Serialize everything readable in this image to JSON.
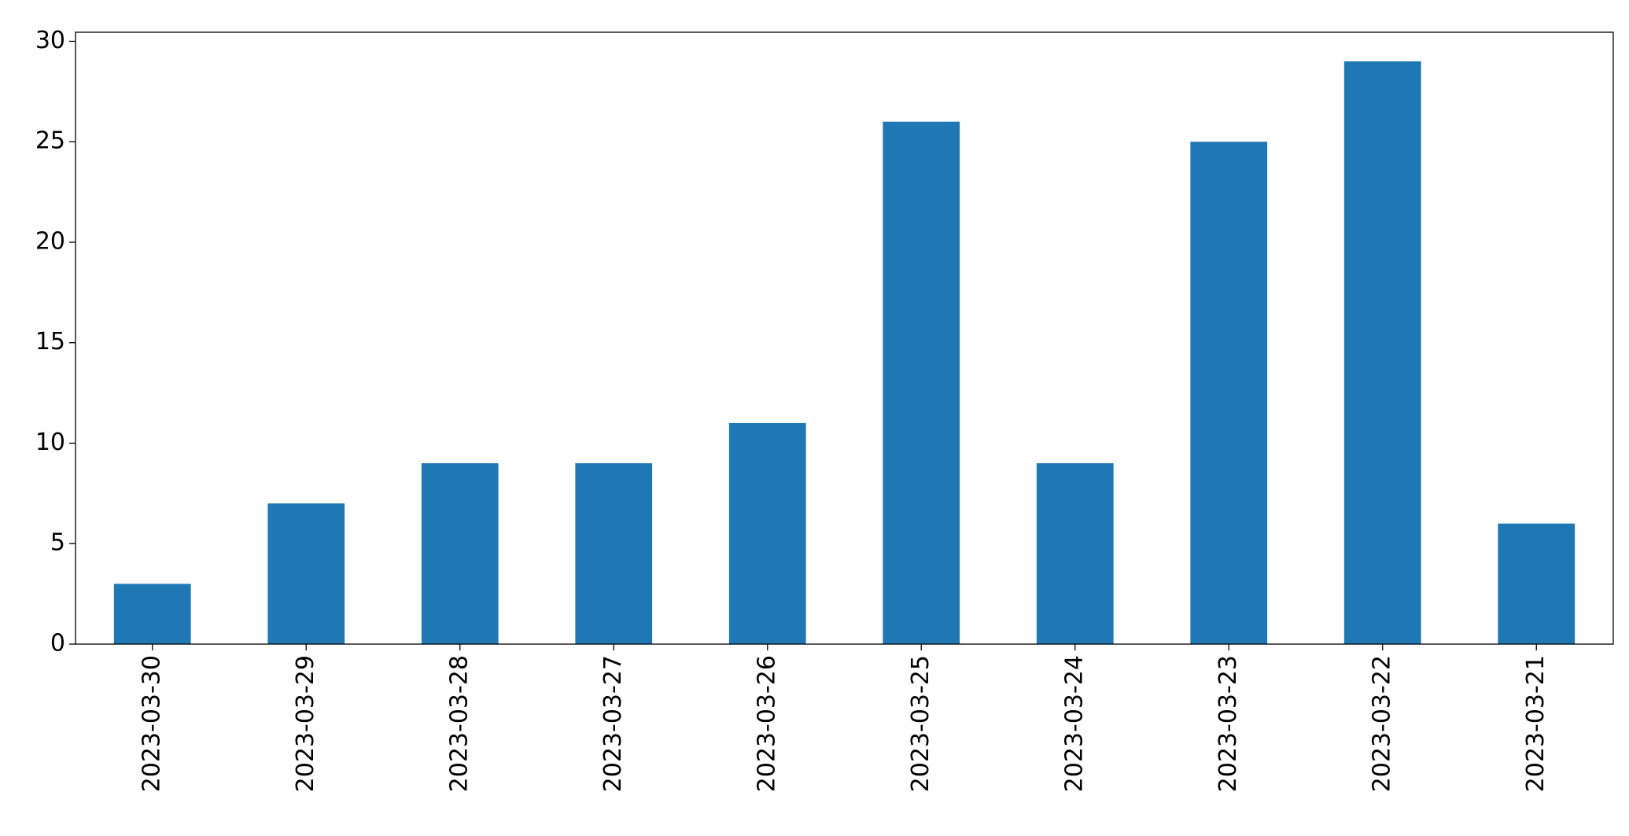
{
  "chart_data": {
    "type": "bar",
    "categories": [
      "2023-03-30",
      "2023-03-29",
      "2023-03-28",
      "2023-03-27",
      "2023-03-26",
      "2023-03-25",
      "2023-03-24",
      "2023-03-23",
      "2023-03-22",
      "2023-03-21"
    ],
    "values": [
      3,
      7,
      9,
      9,
      11,
      26,
      9,
      25,
      29,
      6
    ],
    "color": "#1f77b4",
    "ylim": [
      0,
      30.45
    ],
    "yticks": [
      0,
      5,
      10,
      15,
      20,
      25,
      30
    ],
    "grid": false
  }
}
